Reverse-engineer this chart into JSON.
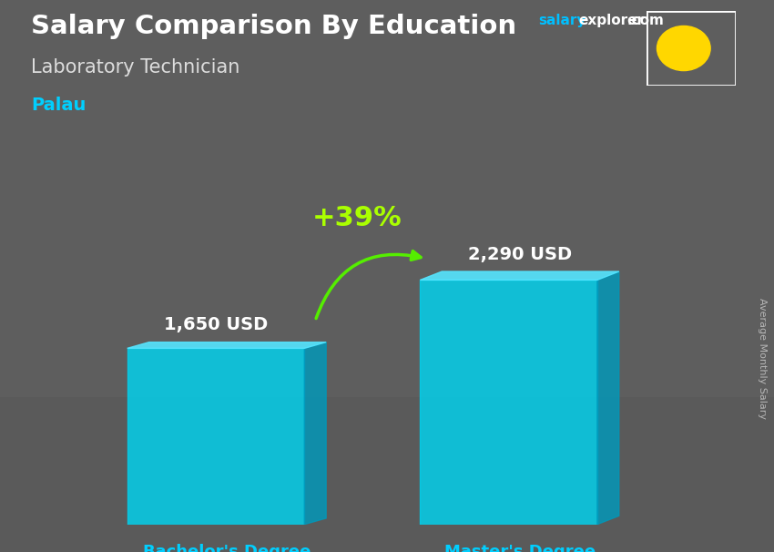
{
  "title": "Salary Comparison By Education",
  "subtitle": "Laboratory Technician",
  "country": "Palau",
  "ylabel": "Average Monthly Salary",
  "categories": [
    "Bachelor's Degree",
    "Master's Degree"
  ],
  "values": [
    1650,
    2290
  ],
  "labels": [
    "1,650 USD",
    "2,290 USD"
  ],
  "pct_change": "+39%",
  "bar_face_color": "#00D4F0",
  "bar_side_color": "#0099BB",
  "bar_top_color": "#55E5FF",
  "bg_color": "#5a5a5a",
  "bg_top_color": "#3a3a3a",
  "title_color": "#FFFFFF",
  "subtitle_color": "#DDDDDD",
  "country_color": "#00CFFF",
  "xlabel_color": "#00CFFF",
  "value_label_color": "#FFFFFF",
  "pct_color": "#AAFF00",
  "arrow_color": "#55EE00",
  "salary_color": "#00BFFF",
  "explorer_color": "#FFFFFF",
  "com_color": "#FFFFFF",
  "flag_bg": "#009FCA",
  "flag_circle": "#FFD700",
  "rotlabel_color": "#CCCCCC",
  "ylim": [
    0,
    3000
  ]
}
